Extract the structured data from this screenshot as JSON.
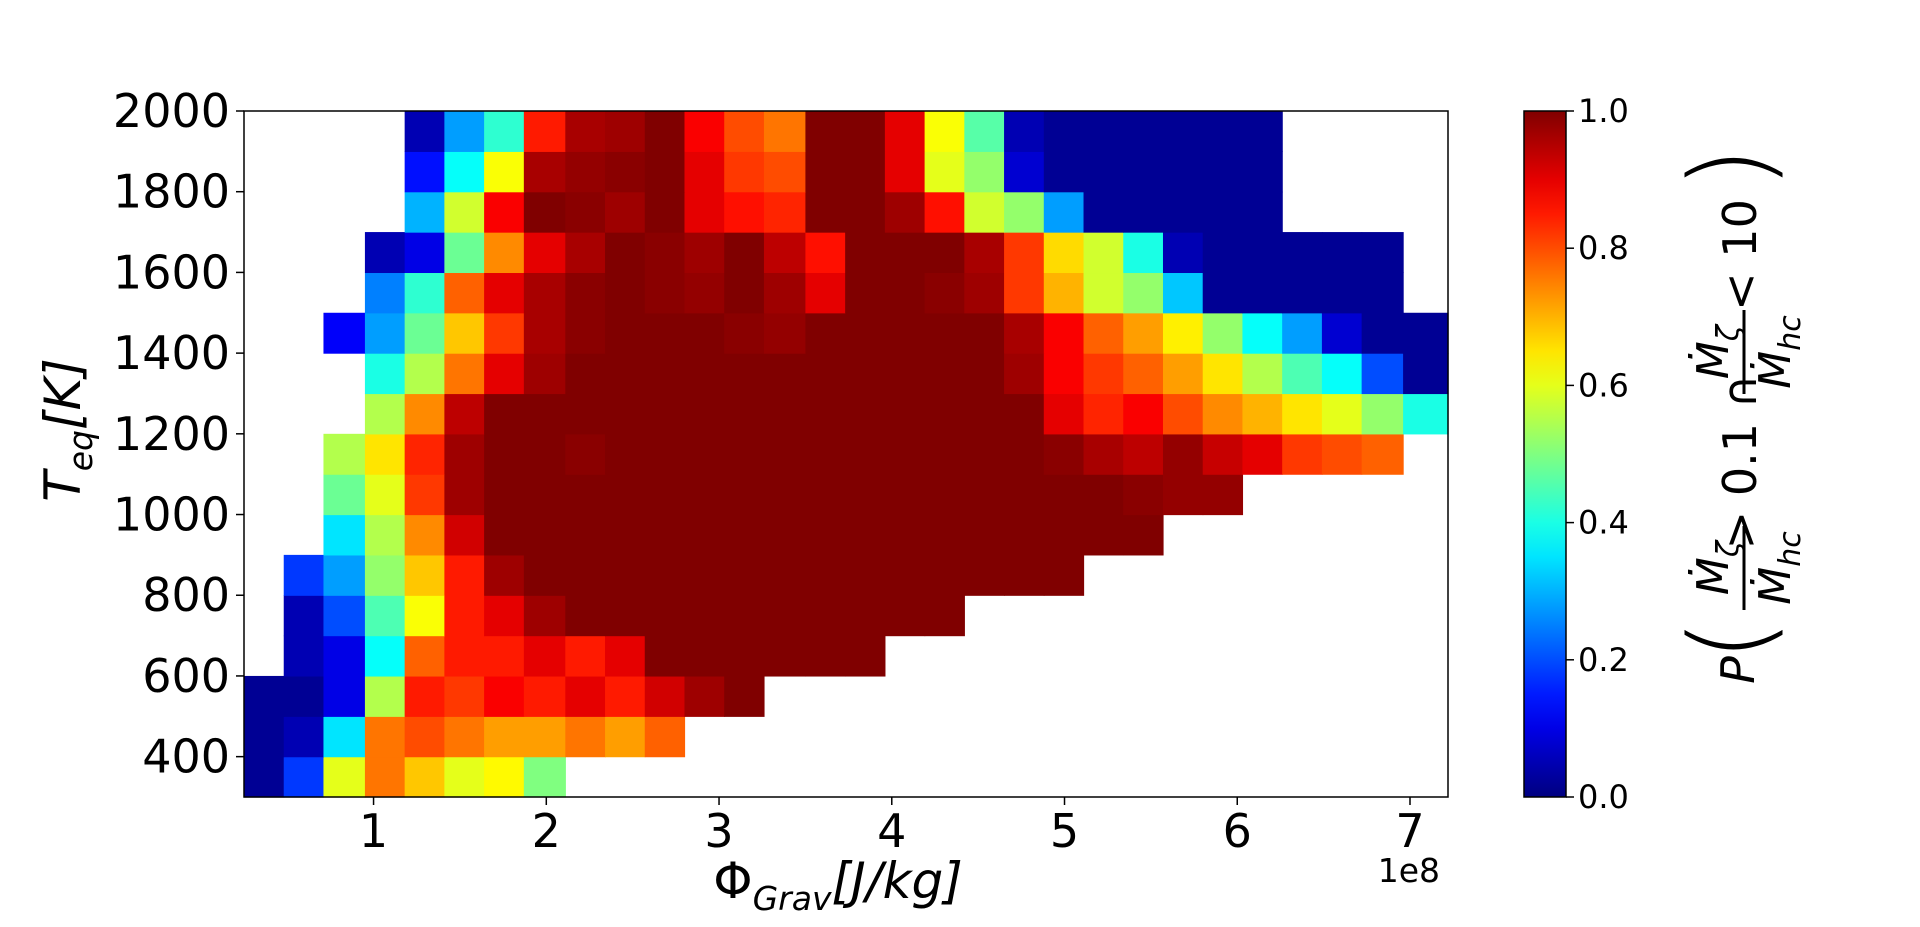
{
  "chart_data": {
    "type": "heatmap",
    "xlabel_main": "Φ",
    "xlabel_sub": "Grav",
    "xlabel_units": "[J/kg]",
    "ylabel_main": "T",
    "ylabel_sub": "eq",
    "ylabel_units": "[K]",
    "x_offset_label": "1e8",
    "xlim": [
      0.25,
      7.22
    ],
    "ylim": [
      300,
      2000
    ],
    "xticks": [
      1,
      2,
      3,
      4,
      5,
      6,
      7
    ],
    "xtick_labels": [
      "1",
      "2",
      "3",
      "4",
      "5",
      "6",
      "7"
    ],
    "yticks": [
      400,
      600,
      800,
      1000,
      1200,
      1400,
      1600,
      1800,
      2000
    ],
    "ytick_labels": [
      "400",
      "600",
      "800",
      "1000",
      "1200",
      "1400",
      "1600",
      "1800",
      "2000"
    ],
    "colormap": "jet",
    "colorbar": {
      "range": [
        0,
        1
      ],
      "ticks": [
        0.0,
        0.2,
        0.4,
        0.6,
        0.8,
        1.0
      ],
      "tick_labels": [
        "0.0",
        "0.2",
        "0.4",
        "0.6",
        "0.8",
        "1.0"
      ],
      "label": "P( Ṁζ/Ṁhc > 0.1 ∩ Ṁζ/Ṁhc < 10 )"
    },
    "x_bin_edges_e8": [
      0.25,
      0.48,
      0.71,
      0.95,
      1.18,
      1.41,
      1.64,
      1.87,
      2.11,
      2.34,
      2.57,
      2.8,
      3.03,
      3.26,
      3.5,
      3.73,
      3.96,
      4.19,
      4.42,
      4.65,
      4.88,
      5.11,
      5.34,
      5.57,
      5.8,
      6.03,
      6.26,
      6.49,
      6.72,
      6.96,
      7.22
    ],
    "y_bin_edges": [
      300,
      400,
      500,
      600,
      700,
      800,
      900,
      1000,
      1100,
      1200,
      1300,
      1400,
      1500,
      1600,
      1700,
      1800,
      1900,
      2000
    ],
    "values": [
      [
        0.02,
        0.18,
        0.6,
        0.76,
        0.68,
        0.6,
        0.63,
        0.5,
        null,
        null,
        null,
        null,
        null,
        null,
        null,
        null,
        null,
        null,
        null,
        null,
        null,
        null,
        null,
        null,
        null,
        null,
        null,
        null,
        null,
        null
      ],
      [
        0.02,
        0.05,
        0.35,
        0.76,
        0.8,
        0.76,
        0.72,
        0.72,
        0.76,
        0.72,
        0.78,
        null,
        null,
        null,
        null,
        null,
        null,
        null,
        null,
        null,
        null,
        null,
        null,
        null,
        null,
        null,
        null,
        null,
        null,
        null
      ],
      [
        0.02,
        0.02,
        0.1,
        0.55,
        0.85,
        0.82,
        0.88,
        0.85,
        0.9,
        0.85,
        0.92,
        0.97,
        1.0,
        null,
        null,
        null,
        null,
        null,
        null,
        null,
        null,
        null,
        null,
        null,
        null,
        null,
        null,
        null,
        null,
        null
      ],
      [
        null,
        0.05,
        0.1,
        0.38,
        0.78,
        0.85,
        0.85,
        0.9,
        0.85,
        0.9,
        1.0,
        1.0,
        1.0,
        1.0,
        1.0,
        1.0,
        null,
        null,
        null,
        null,
        null,
        null,
        null,
        null,
        null,
        null,
        null,
        null,
        null,
        null
      ],
      [
        null,
        0.05,
        0.2,
        0.45,
        0.62,
        0.85,
        0.9,
        0.97,
        1.0,
        1.0,
        1.0,
        1.0,
        1.0,
        1.0,
        1.0,
        1.0,
        1.0,
        1.0,
        null,
        null,
        null,
        null,
        null,
        null,
        null,
        null,
        null,
        null,
        null,
        null
      ],
      [
        null,
        0.18,
        0.28,
        0.52,
        0.68,
        0.85,
        0.97,
        1.0,
        1.0,
        1.0,
        1.0,
        1.0,
        1.0,
        1.0,
        1.0,
        1.0,
        1.0,
        1.0,
        1.0,
        1.0,
        1.0,
        null,
        null,
        null,
        null,
        null,
        null,
        null,
        null,
        null
      ],
      [
        null,
        null,
        0.35,
        0.55,
        0.74,
        0.92,
        1.0,
        1.0,
        1.0,
        1.0,
        1.0,
        1.0,
        1.0,
        1.0,
        1.0,
        1.0,
        1.0,
        1.0,
        1.0,
        1.0,
        1.0,
        1.0,
        1.0,
        null,
        null,
        null,
        null,
        null,
        null,
        null
      ],
      [
        null,
        null,
        0.48,
        0.6,
        0.82,
        0.97,
        1.0,
        1.0,
        1.0,
        1.0,
        1.0,
        1.0,
        1.0,
        1.0,
        1.0,
        1.0,
        1.0,
        1.0,
        1.0,
        1.0,
        1.0,
        1.0,
        0.99,
        0.98,
        0.98,
        null,
        null,
        null,
        null,
        null
      ],
      [
        null,
        null,
        0.55,
        0.65,
        0.84,
        0.97,
        1.0,
        1.0,
        0.99,
        1.0,
        1.0,
        1.0,
        1.0,
        1.0,
        1.0,
        1.0,
        1.0,
        1.0,
        1.0,
        1.0,
        0.99,
        0.96,
        0.94,
        0.98,
        0.93,
        0.9,
        0.82,
        0.8,
        0.78,
        null
      ],
      [
        null,
        null,
        null,
        0.55,
        0.74,
        0.94,
        1.0,
        1.0,
        1.0,
        1.0,
        1.0,
        1.0,
        1.0,
        1.0,
        1.0,
        1.0,
        1.0,
        1.0,
        1.0,
        1.0,
        0.9,
        0.84,
        0.88,
        0.8,
        0.74,
        0.7,
        0.65,
        0.6,
        0.52,
        0.4
      ],
      [
        null,
        null,
        null,
        0.4,
        0.55,
        0.76,
        0.9,
        0.97,
        1.0,
        1.0,
        1.0,
        1.0,
        1.0,
        1.0,
        1.0,
        1.0,
        1.0,
        1.0,
        1.0,
        0.97,
        0.88,
        0.82,
        0.78,
        0.72,
        0.65,
        0.55,
        0.45,
        0.38,
        0.2,
        0.02
      ],
      [
        null,
        null,
        0.12,
        0.28,
        0.48,
        0.68,
        0.82,
        0.96,
        0.99,
        1.0,
        1.0,
        1.0,
        0.99,
        0.98,
        1.0,
        1.0,
        1.0,
        1.0,
        1.0,
        0.96,
        0.88,
        0.78,
        0.72,
        0.64,
        0.52,
        0.38,
        0.28,
        0.08,
        0.02,
        0.02
      ],
      [
        null,
        null,
        null,
        0.25,
        0.42,
        0.78,
        0.9,
        0.96,
        0.99,
        1.0,
        0.99,
        0.98,
        1.0,
        0.97,
        0.9,
        1.0,
        1.0,
        0.99,
        0.97,
        0.82,
        0.7,
        0.58,
        0.52,
        0.32,
        0.02,
        0.02,
        0.02,
        0.02,
        0.02,
        null
      ],
      [
        null,
        null,
        null,
        0.05,
        0.1,
        0.48,
        0.74,
        0.9,
        0.96,
        1.0,
        0.99,
        0.97,
        1.0,
        0.94,
        0.86,
        1.0,
        1.0,
        1.0,
        0.96,
        0.82,
        0.66,
        0.58,
        0.4,
        0.05,
        0.02,
        0.02,
        0.02,
        0.02,
        0.02,
        null
      ],
      [
        null,
        null,
        null,
        null,
        0.3,
        0.58,
        0.88,
        1.0,
        0.99,
        0.97,
        1.0,
        0.9,
        0.86,
        0.84,
        1.0,
        1.0,
        0.97,
        0.86,
        0.58,
        0.52,
        0.28,
        0.02,
        0.02,
        0.02,
        0.02,
        0.02,
        null,
        null,
        null,
        null
      ],
      [
        null,
        null,
        null,
        null,
        0.14,
        0.38,
        0.62,
        0.96,
        0.98,
        0.99,
        1.0,
        0.9,
        0.82,
        0.8,
        1.0,
        1.0,
        0.9,
        0.6,
        0.52,
        0.08,
        0.02,
        0.02,
        0.02,
        0.02,
        0.02,
        0.02,
        null,
        null,
        null,
        null
      ],
      [
        null,
        null,
        null,
        null,
        0.05,
        0.28,
        0.42,
        0.85,
        0.96,
        0.97,
        1.0,
        0.88,
        0.8,
        0.76,
        1.0,
        1.0,
        0.9,
        0.62,
        0.46,
        0.05,
        0.02,
        0.02,
        0.02,
        0.02,
        0.02,
        0.02,
        null,
        null,
        null,
        null
      ]
    ]
  }
}
